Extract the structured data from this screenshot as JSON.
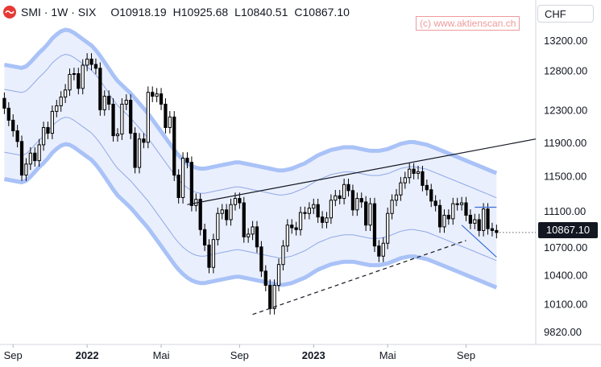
{
  "header": {
    "symbol": "SMI · 1W · SIX",
    "open_label": "O",
    "open": "10918.19",
    "high_label": "H",
    "high": "10925.68",
    "low_label": "L",
    "low": "10840.51",
    "close_label": "C",
    "close": "10867.10"
  },
  "watermark": "(c) www.aktienscan.ch",
  "currency_button": "CHF",
  "last_price_label": "10867.10",
  "colors": {
    "band_fill": "#e6ecfd",
    "band_outer": "#a9c2f7",
    "band_inner": "#8fa9e6",
    "candle": "#000000",
    "axis_text": "#131722",
    "last_label_bg": "#131722",
    "watermark": "#ef9a9a"
  },
  "chart_data": {
    "type": "candlestick",
    "title": "",
    "y_axis": {
      "ticks": [
        13200,
        12800,
        12300,
        11900,
        11500,
        11100,
        10700,
        10400,
        10100,
        9820
      ],
      "tick_labels": [
        "13200.00",
        "12800.00",
        "12300.00",
        "11900.00",
        "11500.00",
        "11100.00",
        "10700.00",
        "10400.00",
        "10100.00",
        "9820.00"
      ],
      "scale": "log",
      "range": [
        9700,
        13450
      ]
    },
    "x_axis": {
      "tick_labels": [
        "Sep",
        "2022",
        "Mai",
        "Sep",
        "2023",
        "Mai",
        "Sep"
      ],
      "tick_dates": [
        "2021-09-06",
        "2022-01-03",
        "2022-05-02",
        "2022-09-05",
        "2023-01-02",
        "2023-05-01",
        "2023-09-04"
      ],
      "range": [
        "2021-08-16",
        "2023-12-25"
      ]
    },
    "week_start": "2021-08-23",
    "close": [
      12330,
      12180,
      12050,
      11920,
      11520,
      11650,
      11780,
      11690,
      11880,
      12090,
      12020,
      12290,
      12360,
      12470,
      12560,
      12760,
      12770,
      12580,
      12880,
      12960,
      12890,
      12840,
      12310,
      12480,
      12380,
      11990,
      12010,
      12380,
      12430,
      12020,
      11610,
      11950,
      11910,
      12530,
      12480,
      12510,
      12380,
      12090,
      12220,
      11520,
      11260,
      11720,
      11670,
      11170,
      11240,
      10900,
      10730,
      10490,
      10790,
      11080,
      11120,
      11010,
      11180,
      11250,
      11200,
      10820,
      10850,
      10930,
      10710,
      10450,
      10300,
      10060,
      10300,
      10520,
      10720,
      10950,
      10920,
      10900,
      11090,
      11080,
      11140,
      11180,
      11040,
      10980,
      11030,
      11230,
      11280,
      11250,
      11410,
      11340,
      11120,
      11250,
      11210,
      10950,
      11190,
      10720,
      10610,
      10750,
      11080,
      11230,
      11290,
      11430,
      11490,
      11590,
      11540,
      11560,
      11400,
      11350,
      11220,
      11170,
      10930,
      11060,
      11020,
      11190,
      11180,
      11200,
      11060,
      10970,
      11010,
      10890,
      11130,
      10910,
      10890,
      10868
    ],
    "open_interp_note": "",
    "bands": {
      "middle": [
        12180,
        12170,
        12160,
        12150,
        12140,
        12160,
        12210,
        12270,
        12330,
        12380,
        12440,
        12510,
        12560,
        12600,
        12620,
        12610,
        12580,
        12540,
        12500,
        12460,
        12420,
        12360,
        12290,
        12210,
        12130,
        12050,
        11980,
        11930,
        11880,
        11830,
        11770,
        11710,
        11650,
        11590,
        11520,
        11450,
        11380,
        11310,
        11240,
        11170,
        11110,
        11060,
        11020,
        10990,
        10970,
        10960,
        10960,
        10970,
        10980,
        10990,
        11000,
        11010,
        11020,
        11030,
        11030,
        11020,
        11010,
        11000,
        10990,
        10980,
        10970,
        10960,
        10950,
        10940,
        10940,
        10950,
        10960,
        10980,
        11000,
        11020,
        11050,
        11080,
        11110,
        11130,
        11150,
        11170,
        11180,
        11190,
        11200,
        11200,
        11200,
        11190,
        11180,
        11170,
        11160,
        11160,
        11160,
        11170,
        11180,
        11200,
        11220,
        11240,
        11250,
        11260,
        11260,
        11250,
        11240,
        11230,
        11210,
        11190,
        11170,
        11150,
        11130,
        11110,
        11090,
        11070,
        11050,
        11030,
        11010,
        10990,
        10970,
        10950,
        10930,
        10910
      ],
      "width": 0.058
    },
    "trendlines": [
      {
        "style": "solid",
        "from": {
          "date": "2022-06-13",
          "value": 11180
        },
        "to": {
          "date": "2023-12-25",
          "value": 11950
        }
      },
      {
        "style": "dashed",
        "from": {
          "date": "2022-09-26",
          "value": 10000
        },
        "to": {
          "date": "2023-09-04",
          "value": 10780
        }
      },
      {
        "style": "solid-blue",
        "from": {
          "date": "2023-08-28",
          "value": 10950
        },
        "to": {
          "date": "2023-10-23",
          "value": 10600
        }
      },
      {
        "style": "solid-blue",
        "from": {
          "date": "2023-09-18",
          "value": 11150
        },
        "to": {
          "date": "2023-10-23",
          "value": 11150
        }
      }
    ]
  }
}
